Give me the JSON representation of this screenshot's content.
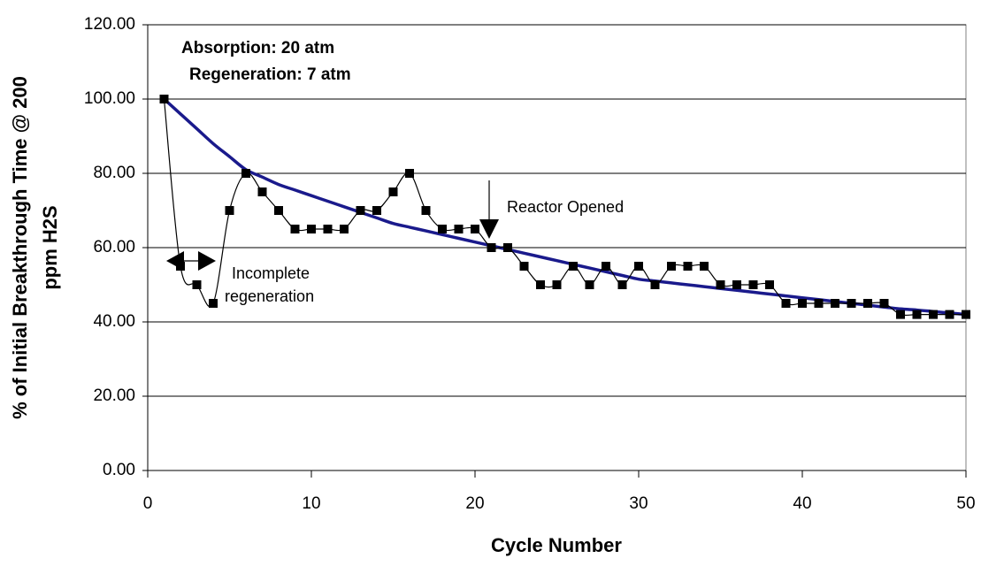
{
  "chart_data": {
    "type": "line",
    "x_label": "Cycle Number",
    "y_label": [
      "% of Initial Breakthrough Time @ 200",
      "ppm H2S"
    ],
    "annotations": {
      "conditions": [
        "Absorption: 20 atm",
        "Regeneration: 7 atm"
      ],
      "reactor": "Reactor Opened",
      "incomplete": [
        "Incomplete",
        "regeneration"
      ]
    },
    "x": [
      1,
      2,
      3,
      4,
      5,
      6,
      7,
      8,
      9,
      10,
      11,
      12,
      13,
      14,
      15,
      16,
      17,
      18,
      19,
      20,
      21,
      22,
      23,
      24,
      25,
      26,
      27,
      28,
      29,
      30,
      31,
      32,
      33,
      34,
      35,
      36,
      37,
      38,
      39,
      40,
      41,
      42,
      43,
      44,
      45,
      46,
      47,
      48,
      49,
      50
    ],
    "series": [
      {
        "color": "#000000",
        "marker": "square",
        "values": [
          100,
          55,
          50,
          45,
          70,
          80,
          75,
          70,
          65,
          65,
          65,
          65,
          70,
          70,
          75,
          80,
          70,
          65,
          65,
          65,
          60,
          60,
          55,
          50,
          50,
          55,
          50,
          55,
          50,
          55,
          50,
          55,
          55,
          55,
          50,
          50,
          50,
          50,
          45,
          45,
          45,
          45,
          45,
          45,
          45,
          42,
          42,
          42,
          42,
          42
        ]
      },
      {
        "color": "#1a1a8c",
        "marker": "none",
        "values": [
          100,
          96,
          92,
          88,
          84.5,
          81,
          79,
          77,
          75.5,
          74,
          72.5,
          71,
          69.5,
          68,
          66.5,
          65.5,
          64.5,
          63.5,
          62.5,
          61.5,
          60.5,
          59.5,
          58.5,
          57.5,
          56.5,
          55.5,
          54.5,
          53.5,
          52.5,
          51.5,
          51,
          50.5,
          50,
          49.5,
          49,
          48.5,
          48,
          47.5,
          47,
          46.5,
          46,
          45.5,
          45,
          44.5,
          44,
          43.5,
          43.2,
          42.8,
          42.4,
          42
        ]
      }
    ],
    "xlim": [
      0,
      50
    ],
    "xticks": [
      0,
      10,
      20,
      30,
      40,
      50
    ],
    "ylim": [
      0,
      120
    ],
    "yticks": [
      {
        "value": 0,
        "label": "0.00"
      },
      {
        "value": 20,
        "label": "20.00"
      },
      {
        "value": 40,
        "label": "40.00"
      },
      {
        "value": 60,
        "label": "60.00"
      },
      {
        "value": 80,
        "label": "80.00"
      },
      {
        "value": 100,
        "label": "100.00"
      },
      {
        "value": 120,
        "label": "120.00"
      }
    ],
    "grid": true
  }
}
